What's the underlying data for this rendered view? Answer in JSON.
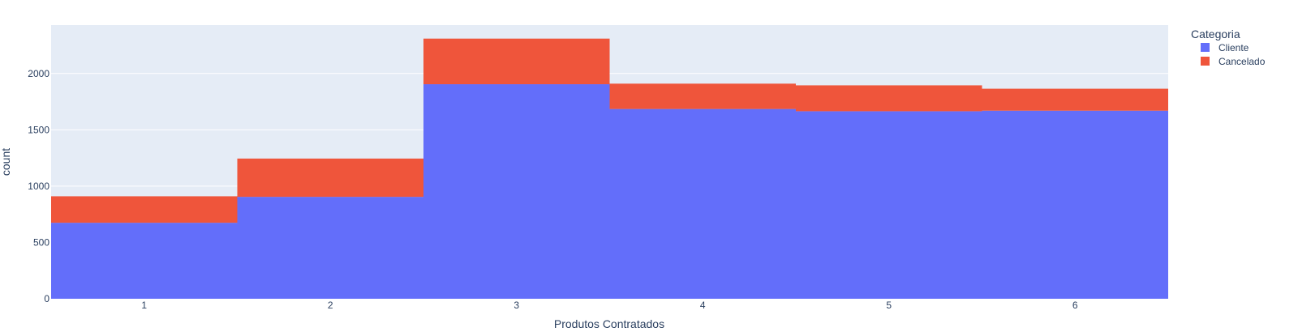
{
  "chart_data": {
    "type": "bar",
    "barmode": "stack",
    "categories": [
      "1",
      "2",
      "3",
      "4",
      "5",
      "6"
    ],
    "series": [
      {
        "name": "Cliente",
        "color": "#636efa",
        "values": [
          675,
          905,
          1905,
          1685,
          1665,
          1670
        ]
      },
      {
        "name": "Cancelado",
        "color": "#ef553b",
        "values": [
          235,
          340,
          405,
          225,
          230,
          195
        ]
      }
    ],
    "title": "",
    "xlabel": "Produtos Contratados",
    "ylabel": "count",
    "ylim": [
      0,
      2430
    ],
    "yticks": [
      "0",
      "500",
      "1000",
      "1500",
      "2000"
    ],
    "ytick_values": [
      0,
      500,
      1000,
      1500,
      2000
    ],
    "grid": true,
    "legend": {
      "title": "Categoria",
      "position": "top-right",
      "items": [
        "Cliente",
        "Cancelado"
      ]
    },
    "plot_background": "#e5ecf6"
  }
}
